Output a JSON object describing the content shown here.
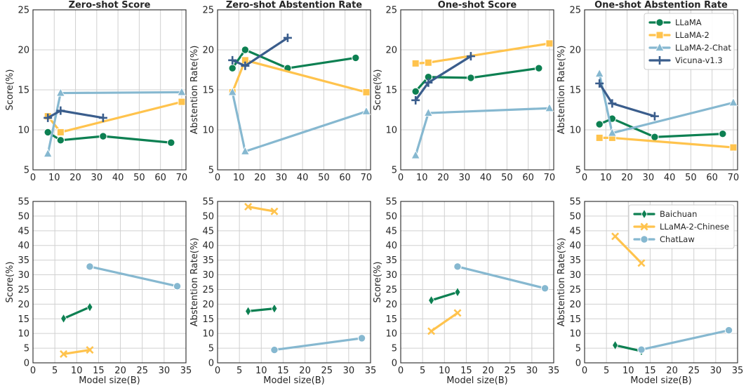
{
  "colors": {
    "LLaMA": "#0d8052",
    "LLaMA-2": "#ffc34d",
    "LLaMA-2-Chat": "#86b8d0",
    "Vicuna-v1.3": "#3a5d8c",
    "Baichuan": "#0d8052",
    "LLaMA-2-Chinese": "#ffc34d",
    "ChatLaw": "#86b8d0"
  },
  "chart_data": [
    {
      "type": "line",
      "title": "Zero-shot Score",
      "xlabel": "",
      "ylabel": "Score(%)",
      "xlim": [
        0,
        72
      ],
      "ylim": [
        5,
        25
      ],
      "xticks": [
        "0",
        "10",
        "20",
        "30",
        "40",
        "50",
        "60",
        "70"
      ],
      "yticks": [
        "5",
        "10",
        "15",
        "20",
        "25"
      ],
      "series": [
        {
          "name": "LLaMA",
          "marker": "circle",
          "x": [
            7,
            13,
            33,
            65
          ],
          "y": [
            9.7,
            8.7,
            9.2,
            8.4
          ]
        },
        {
          "name": "LLaMA-2",
          "marker": "square",
          "x": [
            7,
            13,
            70
          ],
          "y": [
            11.7,
            9.7,
            13.5
          ]
        },
        {
          "name": "LLaMA-2-Chat",
          "marker": "triangle",
          "x": [
            7,
            13,
            70
          ],
          "y": [
            7.0,
            14.6,
            14.7
          ]
        },
        {
          "name": "Vicuna-v1.3",
          "marker": "plus",
          "x": [
            7,
            13,
            33
          ],
          "y": [
            11.5,
            12.4,
            11.5
          ]
        }
      ]
    },
    {
      "type": "line",
      "title": "Zero-shot Abstention Rate",
      "xlabel": "",
      "ylabel": "Abstention Rate(%)",
      "xlim": [
        0,
        72
      ],
      "ylim": [
        5,
        25
      ],
      "xticks": [
        "0",
        "10",
        "20",
        "30",
        "40",
        "50",
        "60",
        "70"
      ],
      "yticks": [
        "5",
        "10",
        "15",
        "20",
        "25"
      ],
      "series": [
        {
          "name": "LLaMA",
          "marker": "circle",
          "x": [
            7,
            13,
            33,
            65
          ],
          "y": [
            17.7,
            20.0,
            17.7,
            19.0
          ]
        },
        {
          "name": "LLaMA-2",
          "marker": "square",
          "x": [
            7,
            13,
            70
          ],
          "y": [
            14.7,
            18.7,
            14.7
          ]
        },
        {
          "name": "LLaMA-2-Chat",
          "marker": "triangle",
          "x": [
            7,
            13,
            70
          ],
          "y": [
            14.7,
            7.3,
            12.3
          ]
        },
        {
          "name": "Vicuna-v1.3",
          "marker": "plus",
          "x": [
            7,
            13,
            33
          ],
          "y": [
            18.7,
            18.0,
            21.5
          ]
        }
      ]
    },
    {
      "type": "line",
      "title": "One-shot Score",
      "xlabel": "",
      "ylabel": "Score(%)",
      "xlim": [
        0,
        72
      ],
      "ylim": [
        5,
        25
      ],
      "xticks": [
        "0",
        "10",
        "20",
        "30",
        "40",
        "50",
        "60",
        "70"
      ],
      "yticks": [
        "5",
        "10",
        "15",
        "20",
        "25"
      ],
      "series": [
        {
          "name": "LLaMA",
          "marker": "circle",
          "x": [
            7,
            13,
            33,
            65
          ],
          "y": [
            14.8,
            16.6,
            16.5,
            17.7
          ]
        },
        {
          "name": "LLaMA-2",
          "marker": "square",
          "x": [
            7,
            13,
            70
          ],
          "y": [
            18.3,
            18.4,
            20.8
          ]
        },
        {
          "name": "LLaMA-2-Chat",
          "marker": "triangle",
          "x": [
            7,
            13,
            70
          ],
          "y": [
            6.8,
            12.1,
            12.7
          ]
        },
        {
          "name": "Vicuna-v1.3",
          "marker": "plus",
          "x": [
            7,
            13,
            33
          ],
          "y": [
            13.7,
            15.9,
            19.2
          ]
        }
      ]
    },
    {
      "type": "line",
      "title": "One-shot Abstention Rate",
      "xlabel": "",
      "ylabel": "Abstention Rate(%)",
      "xlim": [
        0,
        72
      ],
      "ylim": [
        5,
        25
      ],
      "xticks": [
        "0",
        "10",
        "20",
        "30",
        "40",
        "50",
        "60",
        "70"
      ],
      "yticks": [
        "5",
        "10",
        "15",
        "20",
        "25"
      ],
      "legend": "top-right",
      "series": [
        {
          "name": "LLaMA",
          "marker": "circle",
          "x": [
            7,
            13,
            33,
            65
          ],
          "y": [
            10.7,
            11.4,
            9.1,
            9.5
          ]
        },
        {
          "name": "LLaMA-2",
          "marker": "square",
          "x": [
            7,
            13,
            70
          ],
          "y": [
            9.0,
            9.0,
            7.8
          ]
        },
        {
          "name": "LLaMA-2-Chat",
          "marker": "triangle",
          "x": [
            7,
            13,
            70
          ],
          "y": [
            17.0,
            9.6,
            13.4
          ]
        },
        {
          "name": "Vicuna-v1.3",
          "marker": "plus",
          "x": [
            7,
            13,
            33
          ],
          "y": [
            15.8,
            13.3,
            11.7
          ]
        }
      ]
    },
    {
      "type": "line",
      "title": "",
      "xlabel": "Model size(B)",
      "ylabel": "Score(%)",
      "xlim": [
        0,
        35
      ],
      "ylim": [
        0,
        55
      ],
      "xticks": [
        "0",
        "5",
        "10",
        "15",
        "20",
        "25",
        "30",
        "35"
      ],
      "yticks": [
        "0",
        "5",
        "10",
        "15",
        "20",
        "25",
        "30",
        "35",
        "40",
        "45",
        "50",
        "55"
      ],
      "series": [
        {
          "name": "Baichuan",
          "marker": "diamond",
          "x": [
            7,
            13
          ],
          "y": [
            15.1,
            19.0
          ]
        },
        {
          "name": "LLaMA-2-Chinese",
          "marker": "x",
          "x": [
            7,
            13
          ],
          "y": [
            3.0,
            4.4
          ]
        },
        {
          "name": "ChatLaw",
          "marker": "circle",
          "x": [
            13,
            33
          ],
          "y": [
            32.8,
            26.1
          ]
        }
      ]
    },
    {
      "type": "line",
      "title": "",
      "xlabel": "Model size(B)",
      "ylabel": "Abstention Rate(%)",
      "xlim": [
        0,
        35
      ],
      "ylim": [
        0,
        55
      ],
      "xticks": [
        "0",
        "5",
        "10",
        "15",
        "20",
        "25",
        "30",
        "35"
      ],
      "yticks": [
        "0",
        "5",
        "10",
        "15",
        "20",
        "25",
        "30",
        "35",
        "40",
        "45",
        "50",
        "55"
      ],
      "series": [
        {
          "name": "Baichuan",
          "marker": "diamond",
          "x": [
            7,
            13
          ],
          "y": [
            17.6,
            18.5
          ]
        },
        {
          "name": "LLaMA-2-Chinese",
          "marker": "x",
          "x": [
            7,
            13
          ],
          "y": [
            53.2,
            51.6
          ]
        },
        {
          "name": "ChatLaw",
          "marker": "circle",
          "x": [
            13,
            33
          ],
          "y": [
            4.4,
            8.4
          ]
        }
      ]
    },
    {
      "type": "line",
      "title": "",
      "xlabel": "Model size(B)",
      "ylabel": "Score(%)",
      "xlim": [
        0,
        35
      ],
      "ylim": [
        0,
        55
      ],
      "xticks": [
        "0",
        "5",
        "10",
        "15",
        "20",
        "25",
        "30",
        "35"
      ],
      "yticks": [
        "0",
        "5",
        "10",
        "15",
        "20",
        "25",
        "30",
        "35",
        "40",
        "45",
        "50",
        "55"
      ],
      "series": [
        {
          "name": "Baichuan",
          "marker": "diamond",
          "x": [
            7,
            13
          ],
          "y": [
            21.3,
            24.1
          ]
        },
        {
          "name": "LLaMA-2-Chinese",
          "marker": "x",
          "x": [
            7,
            13
          ],
          "y": [
            10.8,
            17.0
          ]
        },
        {
          "name": "ChatLaw",
          "marker": "circle",
          "x": [
            13,
            33
          ],
          "y": [
            32.8,
            25.4
          ]
        }
      ]
    },
    {
      "type": "line",
      "title": "",
      "xlabel": "Model size(B)",
      "ylabel": "Abstention Rate(%)",
      "xlim": [
        0,
        35
      ],
      "ylim": [
        0,
        55
      ],
      "xticks": [
        "0",
        "5",
        "10",
        "15",
        "20",
        "25",
        "30",
        "35"
      ],
      "yticks": [
        "0",
        "5",
        "10",
        "15",
        "20",
        "25",
        "30",
        "35",
        "40",
        "45",
        "50",
        "55"
      ],
      "legend": "top-right",
      "series": [
        {
          "name": "Baichuan",
          "marker": "diamond",
          "x": [
            7,
            13
          ],
          "y": [
            6.0,
            4.0
          ]
        },
        {
          "name": "LLaMA-2-Chinese",
          "marker": "x",
          "x": [
            7,
            13
          ],
          "y": [
            43.1,
            34.0
          ]
        },
        {
          "name": "ChatLaw",
          "marker": "circle",
          "x": [
            13,
            33
          ],
          "y": [
            4.5,
            11.1
          ]
        }
      ]
    }
  ]
}
